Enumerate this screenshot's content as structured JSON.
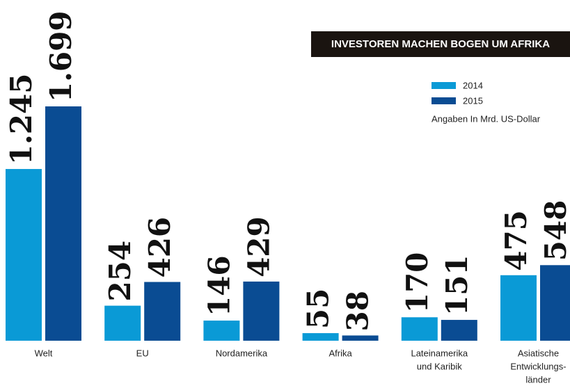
{
  "chart_data": {
    "type": "bar",
    "title": "INVESTOREN MACHEN BOGEN UM AFRIKA",
    "note": "Angaben In Mrd. US-Dollar",
    "categories": [
      [
        "Welt"
      ],
      [
        "EU"
      ],
      [
        "Nordamerika"
      ],
      [
        "Afrika"
      ],
      [
        "Lateinamerika",
        "und Karibik"
      ],
      [
        "Asiatische",
        "Entwicklungs-",
        "länder"
      ]
    ],
    "series": [
      {
        "name": "2014",
        "color": "#0a9ad6",
        "values": [
          1245,
          254,
          146,
          55,
          170,
          475
        ],
        "value_labels": [
          "1.245",
          "254",
          "146",
          "55",
          "170",
          "475"
        ]
      },
      {
        "name": "2015",
        "color": "#0a4c93",
        "values": [
          1699,
          426,
          429,
          38,
          151,
          548
        ],
        "value_labels": [
          "1.699",
          "426",
          "429",
          "38",
          "151",
          "548"
        ]
      }
    ]
  }
}
